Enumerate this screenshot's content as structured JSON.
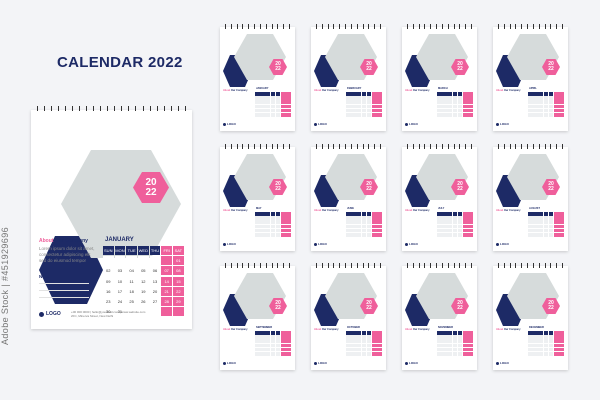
{
  "title": "CALENDAR 2022",
  "year_badge": [
    "20",
    "22"
  ],
  "about_label": "About",
  "about_company": "Our Company",
  "about_text": "Lorem ipsum dolor sit amet, consectetur adipiscing elit sed do eiusmod tempor",
  "note_label": "Note",
  "logo_text": "LOGO",
  "logo_sub": "Tagline here",
  "contact_line1": "+00 000 0000  |  hello@yourmail.com  |  www.website.com",
  "contact_line2": "2FC, Minerva Street, New Delhi",
  "weekdays": [
    "SUN",
    "MON",
    "TUE",
    "WED",
    "THU",
    "FRI",
    "SAT"
  ],
  "main_month": "JANUARY",
  "main_days": [
    "",
    "",
    "",
    "",
    "",
    "",
    "01",
    "02",
    "03",
    "04",
    "05",
    "06",
    "07",
    "08",
    "09",
    "10",
    "11",
    "12",
    "13",
    "14",
    "15",
    "16",
    "17",
    "18",
    "19",
    "20",
    "21",
    "22",
    "23",
    "24",
    "25",
    "26",
    "27",
    "28",
    "29",
    "30",
    "31",
    "",
    "",
    "",
    "",
    ""
  ],
  "months": [
    "JANUARY",
    "FEBRUARY",
    "MARCH",
    "APRIL",
    "MAY",
    "JUNE",
    "JULY",
    "AUGUST",
    "SEPTEMBER",
    "OCTOBER",
    "NOVEMBER",
    "DECEMBER"
  ],
  "watermark": "Adobe Stock | #451929696",
  "colors": {
    "navy": "#1d2a66",
    "pink": "#ef5f9b",
    "grey": "#d6dbdb",
    "page": "#ffffff",
    "background": "#f3f4f7"
  }
}
